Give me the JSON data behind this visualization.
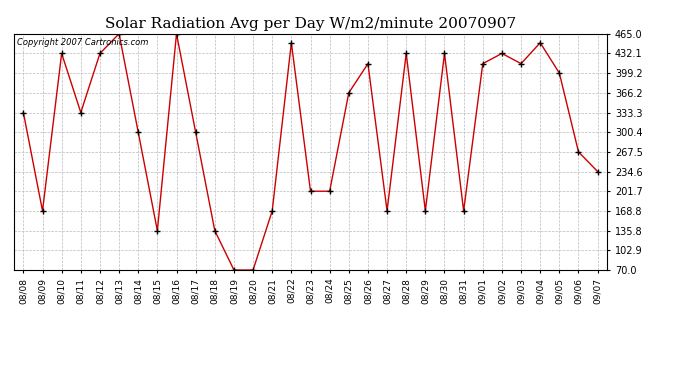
{
  "title": "Solar Radiation Avg per Day W/m2/minute 20070907",
  "copyright_text": "Copyright 2007 Cartronics.com",
  "x_labels": [
    "08/08",
    "08/09",
    "08/10",
    "08/11",
    "08/12",
    "08/13",
    "08/14",
    "08/15",
    "08/16",
    "08/17",
    "08/18",
    "08/19",
    "08/20",
    "08/21",
    "08/22",
    "08/23",
    "08/24",
    "08/25",
    "08/26",
    "08/27",
    "08/28",
    "08/29",
    "08/30",
    "08/31",
    "09/01",
    "09/02",
    "09/03",
    "09/04",
    "09/05",
    "09/06",
    "09/07"
  ],
  "y_values": [
    333.3,
    168.8,
    432.1,
    333.3,
    432.1,
    465.0,
    300.4,
    135.8,
    465.0,
    300.4,
    135.8,
    70.0,
    70.0,
    168.8,
    450.0,
    201.7,
    201.7,
    366.2,
    415.0,
    168.8,
    432.1,
    168.8,
    432.1,
    168.8,
    415.0,
    432.1,
    415.0,
    450.0,
    399.2,
    267.5,
    234.6
  ],
  "y_ticks": [
    70.0,
    102.9,
    135.8,
    168.8,
    201.7,
    234.6,
    267.5,
    300.4,
    333.3,
    366.2,
    399.2,
    432.1,
    465.0
  ],
  "y_min": 70.0,
  "y_max": 465.0,
  "line_color": "#cc0000",
  "marker_color": "#000000",
  "bg_color": "#ffffff",
  "plot_bg_color": "#ffffff",
  "grid_color": "#bbbbbb",
  "title_fontsize": 11,
  "copyright_fontsize": 6,
  "tick_fontsize": 6.5,
  "ytick_fontsize": 7
}
